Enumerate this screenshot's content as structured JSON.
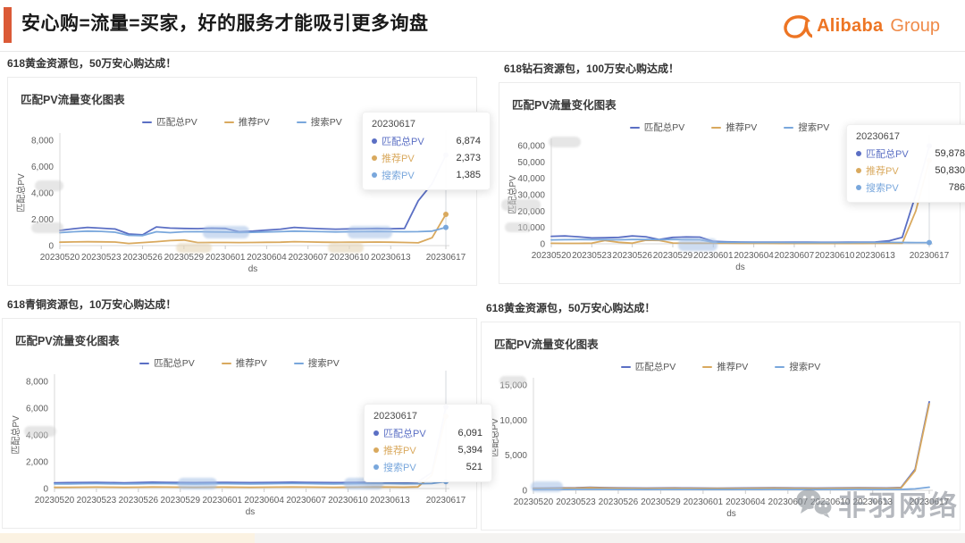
{
  "header": {
    "title": "安心购=流量=买家，好的服务才能吸引更多询盘",
    "logo_brand": "Alibaba",
    "logo_suffix": "Group",
    "accent_color": "#DB5A37",
    "logo_color": "#ED7524"
  },
  "watermark": {
    "text": "非羽网络"
  },
  "series_colors": {
    "match_total": "#5B6FC4",
    "recommend": "#D9A95E",
    "search": "#79A7DC"
  },
  "chart_data": [
    {
      "type": "line",
      "caption": "618黄金资源包，50万安心购达成！",
      "title": "匹配PV流量变化图表",
      "xlabel": "ds",
      "ylabel": "匹配总PV",
      "ylim": [
        0,
        8000
      ],
      "y_ticks": [
        "0",
        "2,000",
        "4,000",
        "6,000",
        "8,000"
      ],
      "x_ticks": [
        "20230520",
        "20230523",
        "20230526",
        "20230529",
        "20230601",
        "20230604",
        "20230607",
        "20230610",
        "20230613",
        "20230617"
      ],
      "x_tick_idx": [
        0,
        3,
        6,
        9,
        12,
        15,
        18,
        21,
        24,
        28
      ],
      "grid": false,
      "legend_position": "top-center",
      "series": [
        {
          "name": "匹配总PV",
          "color": "#5B6FC4",
          "values": [
            1150,
            1280,
            1380,
            1320,
            1260,
            880,
            820,
            1420,
            1330,
            1300,
            1290,
            1320,
            1300,
            1050,
            1100,
            1180,
            1250,
            1380,
            1320,
            1280,
            1250,
            1270,
            1280,
            1300,
            1280,
            1300,
            3400,
            4700,
            6874
          ]
        },
        {
          "name": "推荐PV",
          "color": "#D9A95E",
          "values": [
            260,
            280,
            290,
            285,
            270,
            160,
            230,
            300,
            380,
            420,
            230,
            240,
            235,
            230,
            240,
            250,
            260,
            300,
            280,
            260,
            250,
            255,
            260,
            270,
            260,
            240,
            210,
            600,
            2373
          ]
        },
        {
          "name": "搜索PV",
          "color": "#79A7DC",
          "values": [
            980,
            1050,
            1100,
            1080,
            1020,
            780,
            760,
            1050,
            980,
            1050,
            1060,
            1040,
            1030,
            1000,
            1010,
            1040,
            1060,
            1100,
            1080,
            1060,
            1040,
            1050,
            1060,
            1070,
            1060,
            1050,
            1060,
            1100,
            1385
          ]
        }
      ],
      "tooltip": {
        "date": "20230617",
        "rows": [
          [
            "匹配总PV",
            "6,874"
          ],
          [
            "推荐PV",
            "2,373"
          ],
          [
            "搜索PV",
            "1,385"
          ]
        ]
      },
      "tooltip_pos": [
        396,
        38
      ],
      "smudges": [
        [
          218,
          166,
          52,
          14,
          "b"
        ],
        [
          380,
          166,
          50,
          14,
          "b"
        ],
        [
          188,
          185,
          40,
          11,
          "t"
        ],
        [
          358,
          185,
          40,
          11,
          "t"
        ],
        [
          30,
          115,
          32,
          12,
          "g"
        ],
        [
          26,
          162,
          36,
          12,
          "g"
        ]
      ]
    },
    {
      "type": "line",
      "caption": "618钻石资源包，100万安心购达成！",
      "title": "匹配PV流量变化图表",
      "xlabel": "ds",
      "ylabel": "匹配总PV",
      "ylim": [
        0,
        60000
      ],
      "y_ticks": [
        "0",
        "10,000",
        "20,000",
        "30,000",
        "40,000",
        "50,000",
        "60,000"
      ],
      "x_ticks": [
        "20230520",
        "20230523",
        "20230526",
        "20230529",
        "20230601",
        "20230604",
        "20230607",
        "20230610",
        "20230613",
        "20230617"
      ],
      "x_tick_idx": [
        0,
        3,
        6,
        9,
        12,
        15,
        18,
        21,
        24,
        28
      ],
      "grid": false,
      "legend_position": "top-center",
      "series": [
        {
          "name": "匹配总PV",
          "color": "#5B6FC4",
          "values": [
            4600,
            4800,
            4300,
            3600,
            3700,
            3900,
            4800,
            4300,
            2600,
            3900,
            4200,
            4100,
            1500,
            1200,
            1100,
            1050,
            1000,
            1000,
            980,
            960,
            950,
            940,
            1000,
            1050,
            1100,
            1800,
            4000,
            30000,
            59878
          ]
        },
        {
          "name": "推荐PV",
          "color": "#D9A95E",
          "values": [
            300,
            250,
            260,
            400,
            2000,
            900,
            400,
            2200,
            2100,
            500,
            400,
            380,
            350,
            300,
            280,
            260,
            250,
            240,
            230,
            220,
            210,
            200,
            220,
            240,
            260,
            300,
            350,
            20000,
            50830
          ]
        },
        {
          "name": "搜索PV",
          "color": "#79A7DC",
          "values": [
            2400,
            2500,
            2600,
            2550,
            2500,
            2450,
            2600,
            2700,
            2500,
            2600,
            2550,
            2500,
            1000,
            900,
            850,
            820,
            800,
            800,
            790,
            780,
            770,
            760,
            780,
            800,
            820,
            850,
            800,
            790,
            786
          ]
        }
      ],
      "tooltip": {
        "date": "20230617",
        "rows": [
          [
            "匹配总PV",
            "59,878"
          ],
          [
            "推荐PV",
            "50,830"
          ],
          [
            "搜索PV",
            "786"
          ]
        ]
      },
      "tooltip_pos": [
        388,
        46
      ],
      "smudges": [
        [
          200,
          174,
          44,
          14,
          "b"
        ],
        [
          2,
          130,
          44,
          13,
          "g"
        ],
        [
          6,
          156,
          30,
          11,
          "g"
        ],
        [
          55,
          60,
          36,
          12,
          "g"
        ]
      ]
    },
    {
      "type": "line",
      "caption": "618青铜资源包，10万安心购达成！",
      "title": "匹配PV流量变化图表",
      "xlabel": "ds",
      "ylabel": "匹配总PV",
      "ylim": [
        0,
        8000
      ],
      "y_ticks": [
        "0",
        "2,000",
        "4,000",
        "6,000",
        "8,000"
      ],
      "x_ticks": [
        "20230520",
        "20230523",
        "20230526",
        "20230529",
        "20230601",
        "20230604",
        "20230607",
        "20230610",
        "20230613",
        "20230617"
      ],
      "x_tick_idx": [
        0,
        3,
        6,
        9,
        12,
        15,
        18,
        21,
        24,
        28
      ],
      "grid": false,
      "legend_position": "top-center",
      "series": [
        {
          "name": "匹配总PV",
          "color": "#5B6FC4",
          "values": [
            430,
            440,
            450,
            460,
            440,
            430,
            450,
            470,
            460,
            450,
            440,
            450,
            460,
            450,
            440,
            450,
            460,
            470,
            460,
            450,
            440,
            450,
            460,
            470,
            460,
            450,
            500,
            1200,
            6091
          ]
        },
        {
          "name": "推荐PV",
          "color": "#D9A95E",
          "values": [
            90,
            95,
            100,
            105,
            100,
            95,
            100,
            110,
            105,
            100,
            95,
            100,
            105,
            100,
            95,
            100,
            105,
            110,
            105,
            100,
            95,
            100,
            105,
            110,
            105,
            100,
            120,
            1000,
            5394
          ]
        },
        {
          "name": "搜索PV",
          "color": "#79A7DC",
          "values": [
            340,
            350,
            360,
            365,
            355,
            345,
            355,
            370,
            365,
            355,
            345,
            355,
            365,
            355,
            345,
            355,
            365,
            375,
            365,
            355,
            345,
            355,
            365,
            375,
            365,
            355,
            360,
            380,
            521
          ]
        }
      ],
      "tooltip": {
        "date": "20230617",
        "rows": [
          [
            "匹配总PV",
            "6,091"
          ],
          [
            "推荐PV",
            "5,394"
          ],
          [
            "搜索PV",
            "521"
          ]
        ]
      },
      "tooltip_pos": [
        404,
        95
      ],
      "smudges": [
        [
          196,
          178,
          44,
          13,
          "b"
        ],
        [
          382,
          178,
          44,
          13,
          "b"
        ],
        [
          24,
          120,
          36,
          12,
          "g"
        ]
      ]
    },
    {
      "type": "line",
      "caption": "618黄金资源包，50万安心购达成！",
      "title": "匹配PV流量变化图表",
      "xlabel": "ds",
      "ylabel": "匹配总PV",
      "ylim": [
        0,
        15000
      ],
      "y_ticks": [
        "0",
        "5,000",
        "10,000",
        "15,000"
      ],
      "x_ticks": [
        "20230520",
        "20230523",
        "20230526",
        "20230529",
        "20230601",
        "20230604",
        "20230607",
        "20230610",
        "20230613",
        "20230617"
      ],
      "x_tick_idx": [
        0,
        3,
        6,
        9,
        12,
        15,
        18,
        21,
        24,
        28
      ],
      "grid": false,
      "legend_position": "top-center",
      "series": [
        {
          "name": "匹配总PV",
          "color": "#5B6FC4",
          "values": [
            300,
            320,
            340,
            360,
            420,
            380,
            340,
            330,
            320,
            330,
            340,
            330,
            320,
            310,
            320,
            330,
            340,
            350,
            340,
            330,
            320,
            330,
            340,
            350,
            340,
            330,
            400,
            3000,
            12600
          ]
        },
        {
          "name": "推荐PV",
          "color": "#D9A95E",
          "values": [
            250,
            260,
            280,
            300,
            360,
            320,
            280,
            270,
            260,
            270,
            280,
            270,
            260,
            250,
            260,
            270,
            280,
            290,
            280,
            270,
            260,
            270,
            280,
            290,
            280,
            270,
            330,
            2800,
            12300
          ]
        },
        {
          "name": "搜索PV",
          "color": "#79A7DC",
          "values": [
            120,
            125,
            130,
            135,
            140,
            135,
            130,
            125,
            120,
            125,
            130,
            125,
            120,
            115,
            120,
            125,
            130,
            135,
            130,
            125,
            120,
            125,
            130,
            135,
            130,
            125,
            130,
            200,
            450
          ]
        }
      ],
      "tooltip": null,
      "tooltip_pos": null,
      "smudges": [
        [
          55,
          178,
          36,
          12,
          "b"
        ],
        [
          20,
          60,
          30,
          11,
          "g"
        ]
      ]
    }
  ]
}
